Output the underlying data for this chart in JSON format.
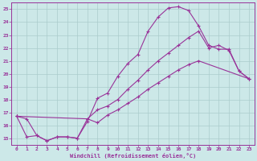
{
  "bg_color": "#cce8e8",
  "grid_color": "#aacccc",
  "line_color": "#993399",
  "xlabel": "Windchill (Refroidissement éolien,°C)",
  "xlim": [
    -0.5,
    23.5
  ],
  "ylim": [
    14.5,
    25.5
  ],
  "xticks": [
    0,
    1,
    2,
    3,
    4,
    5,
    6,
    7,
    8,
    9,
    10,
    11,
    12,
    13,
    14,
    15,
    16,
    17,
    18,
    19,
    20,
    21,
    22,
    23
  ],
  "yticks": [
    15,
    16,
    17,
    18,
    19,
    20,
    21,
    22,
    23,
    24,
    25
  ],
  "curve1_x": [
    0,
    1,
    2,
    3,
    4,
    5,
    6,
    7,
    8,
    9,
    10,
    11,
    12,
    13,
    14,
    15,
    16,
    17,
    18,
    19,
    20,
    21,
    22,
    23
  ],
  "curve1_y": [
    16.7,
    16.5,
    15.2,
    14.8,
    15.1,
    15.1,
    15.0,
    16.3,
    18.1,
    18.5,
    19.8,
    20.8,
    21.5,
    23.3,
    24.4,
    25.1,
    25.2,
    24.9,
    23.7,
    22.2,
    21.9,
    21.9,
    20.2,
    19.6
  ],
  "curve2_x": [
    0,
    7,
    8,
    9,
    10,
    11,
    12,
    13,
    14,
    15,
    16,
    17,
    18,
    19,
    20,
    21,
    22,
    23
  ],
  "curve2_y": [
    16.7,
    16.5,
    17.2,
    17.5,
    18.0,
    18.8,
    19.5,
    20.3,
    21.0,
    21.6,
    22.2,
    22.8,
    23.3,
    22.0,
    22.2,
    21.8,
    20.2,
    19.6
  ],
  "curve3_x": [
    0,
    1,
    2,
    3,
    4,
    5,
    6,
    7,
    8,
    9,
    10,
    11,
    12,
    13,
    14,
    15,
    16,
    17,
    18,
    23
  ],
  "curve3_y": [
    16.7,
    15.1,
    15.2,
    14.8,
    15.1,
    15.1,
    15.0,
    16.5,
    16.2,
    16.8,
    17.2,
    17.7,
    18.2,
    18.8,
    19.3,
    19.8,
    20.3,
    20.7,
    21.0,
    19.6
  ]
}
